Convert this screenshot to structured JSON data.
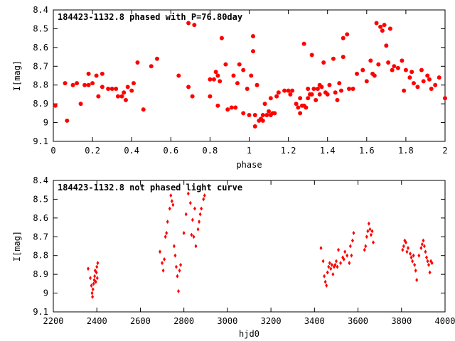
{
  "chart_data": [
    {
      "type": "scatter",
      "title": "184423-1132.8 phased with P=76.80day",
      "xlabel": "phase",
      "ylabel": "I[mag]",
      "xlim": [
        0,
        2
      ],
      "ylim": [
        8.4,
        9.1
      ],
      "y_inverted": true,
      "x_ticks": [
        "0",
        "0.2",
        "0.4",
        "0.6",
        "0.8",
        "1",
        "1.2",
        "1.4",
        "1.6",
        "1.8",
        "2"
      ],
      "x_tick_values": [
        0,
        0.2,
        0.4,
        0.6,
        0.8,
        1.0,
        1.2,
        1.4,
        1.6,
        1.8,
        2.0
      ],
      "y_ticks": [
        "8.4",
        "8.5",
        "8.6",
        "8.7",
        "8.8",
        "8.9",
        "9",
        "9.1"
      ],
      "y_tick_values": [
        8.4,
        8.5,
        8.6,
        8.7,
        8.8,
        8.9,
        9.0,
        9.1
      ],
      "marker": "filled-circle",
      "color": "#ff0000",
      "series": [
        {
          "points": [
            [
              0.01,
              8.91
            ],
            [
              0.06,
              8.79
            ],
            [
              0.07,
              8.99
            ],
            [
              0.1,
              8.8
            ],
            [
              0.12,
              8.79
            ],
            [
              0.14,
              8.9
            ],
            [
              0.16,
              8.8
            ],
            [
              0.18,
              8.8
            ],
            [
              0.18,
              8.74
            ],
            [
              0.2,
              8.79
            ],
            [
              0.22,
              8.75
            ],
            [
              0.23,
              8.86
            ],
            [
              0.25,
              8.74
            ],
            [
              0.25,
              8.81
            ],
            [
              0.28,
              8.82
            ],
            [
              0.3,
              8.82
            ],
            [
              0.32,
              8.82
            ],
            [
              0.33,
              8.86
            ],
            [
              0.35,
              8.86
            ],
            [
              0.36,
              8.84
            ],
            [
              0.37,
              8.88
            ],
            [
              0.38,
              8.81
            ],
            [
              0.4,
              8.83
            ],
            [
              0.41,
              8.79
            ],
            [
              0.43,
              8.68
            ],
            [
              0.46,
              8.93
            ],
            [
              0.5,
              8.7
            ],
            [
              0.53,
              8.66
            ],
            [
              0.64,
              8.75
            ],
            [
              0.69,
              8.81
            ],
            [
              0.69,
              8.47
            ],
            [
              0.71,
              8.86
            ],
            [
              0.72,
              8.48
            ],
            [
              0.8,
              8.77
            ],
            [
              0.8,
              8.86
            ],
            [
              0.82,
              8.77
            ],
            [
              0.83,
              8.73
            ],
            [
              0.84,
              8.75
            ],
            [
              0.84,
              8.91
            ],
            [
              0.85,
              8.78
            ],
            [
              0.86,
              8.55
            ],
            [
              0.88,
              8.69
            ],
            [
              0.89,
              8.93
            ],
            [
              0.91,
              8.92
            ],
            [
              0.92,
              8.75
            ],
            [
              0.93,
              8.92
            ],
            [
              0.94,
              8.79
            ],
            [
              0.95,
              8.69
            ],
            [
              0.97,
              8.72
            ],
            [
              0.97,
              8.95
            ],
            [
              0.99,
              8.82
            ],
            [
              1.0,
              8.96
            ],
            [
              1.01,
              8.75
            ],
            [
              1.02,
              8.54
            ],
            [
              1.02,
              8.62
            ],
            [
              1.03,
              8.96
            ],
            [
              1.03,
              9.02
            ],
            [
              1.04,
              8.8
            ],
            [
              1.05,
              8.99
            ],
            [
              1.06,
              8.98
            ],
            [
              1.07,
              8.99
            ],
            [
              1.07,
              8.96
            ],
            [
              1.08,
              8.9
            ],
            [
              1.09,
              8.96
            ],
            [
              1.1,
              8.94
            ],
            [
              1.11,
              8.87
            ],
            [
              1.11,
              8.96
            ],
            [
              1.12,
              8.95
            ],
            [
              1.13,
              8.95
            ],
            [
              1.14,
              8.86
            ],
            [
              1.15,
              8.84
            ],
            [
              1.18,
              8.83
            ],
            [
              1.2,
              8.83
            ],
            [
              1.21,
              8.85
            ],
            [
              1.22,
              8.83
            ],
            [
              1.24,
              8.9
            ],
            [
              1.25,
              8.92
            ],
            [
              1.26,
              8.95
            ],
            [
              1.26,
              8.87
            ],
            [
              1.27,
              8.91
            ],
            [
              1.28,
              8.58
            ],
            [
              1.28,
              8.91
            ],
            [
              1.29,
              8.92
            ],
            [
              1.3,
              8.87
            ],
            [
              1.3,
              8.82
            ],
            [
              1.31,
              8.85
            ],
            [
              1.32,
              8.85
            ],
            [
              1.32,
              8.64
            ],
            [
              1.33,
              8.82
            ],
            [
              1.34,
              8.88
            ],
            [
              1.35,
              8.82
            ],
            [
              1.36,
              8.8
            ],
            [
              1.36,
              8.85
            ],
            [
              1.37,
              8.81
            ],
            [
              1.38,
              8.68
            ],
            [
              1.39,
              8.84
            ],
            [
              1.4,
              8.85
            ],
            [
              1.41,
              8.8
            ],
            [
              1.43,
              8.66
            ],
            [
              1.44,
              8.84
            ],
            [
              1.45,
              8.88
            ],
            [
              1.46,
              8.79
            ],
            [
              1.47,
              8.83
            ],
            [
              1.48,
              8.65
            ],
            [
              1.48,
              8.55
            ],
            [
              1.5,
              8.53
            ],
            [
              1.51,
              8.82
            ],
            [
              1.53,
              8.82
            ],
            [
              1.55,
              8.74
            ],
            [
              1.58,
              8.72
            ],
            [
              1.6,
              8.78
            ],
            [
              1.62,
              8.67
            ],
            [
              1.63,
              8.74
            ],
            [
              1.64,
              8.75
            ],
            [
              1.65,
              8.47
            ],
            [
              1.66,
              8.69
            ],
            [
              1.67,
              8.49
            ],
            [
              1.68,
              8.51
            ],
            [
              1.69,
              8.48
            ],
            [
              1.7,
              8.59
            ],
            [
              1.71,
              8.68
            ],
            [
              1.72,
              8.5
            ],
            [
              1.73,
              8.72
            ],
            [
              1.74,
              8.7
            ],
            [
              1.76,
              8.71
            ],
            [
              1.78,
              8.67
            ],
            [
              1.79,
              8.83
            ],
            [
              1.8,
              8.72
            ],
            [
              1.82,
              8.76
            ],
            [
              1.83,
              8.73
            ],
            [
              1.84,
              8.79
            ],
            [
              1.86,
              8.81
            ],
            [
              1.88,
              8.72
            ],
            [
              1.89,
              8.78
            ],
            [
              1.91,
              8.75
            ],
            [
              1.92,
              8.77
            ],
            [
              1.93,
              8.82
            ],
            [
              1.95,
              8.8
            ],
            [
              1.97,
              8.76
            ],
            [
              2.0,
              8.87
            ]
          ]
        }
      ]
    },
    {
      "type": "scatter",
      "title": "184423-1132.8 not phased light curve",
      "xlabel": "hjd0",
      "ylabel": "I[mag]",
      "xlim": [
        2200,
        4000
      ],
      "ylim": [
        8.4,
        9.1
      ],
      "y_inverted": true,
      "x_ticks": [
        "2200",
        "2400",
        "2600",
        "2800",
        "3000",
        "3200",
        "3400",
        "3600",
        "3800",
        "4000"
      ],
      "x_tick_values": [
        2200,
        2400,
        2600,
        2800,
        3000,
        3200,
        3400,
        3600,
        3800,
        4000
      ],
      "y_ticks": [
        "8.4",
        "8.5",
        "8.6",
        "8.7",
        "8.8",
        "8.9",
        "9",
        "9.1"
      ],
      "y_tick_values": [
        8.4,
        8.5,
        8.6,
        8.7,
        8.8,
        8.9,
        9.0,
        9.1
      ],
      "marker": "diamond",
      "color": "#ff0000",
      "series": [
        {
          "points": [
            [
              2360,
              8.87
            ],
            [
              2370,
              8.92
            ],
            [
              2375,
              8.96
            ],
            [
              2378,
              9.0
            ],
            [
              2380,
              9.02
            ],
            [
              2382,
              8.98
            ],
            [
              2385,
              8.95
            ],
            [
              2388,
              8.93
            ],
            [
              2390,
              8.91
            ],
            [
              2392,
              8.88
            ],
            [
              2395,
              8.94
            ],
            [
              2398,
              8.89
            ],
            [
              2400,
              8.86
            ],
            [
              2402,
              8.92
            ],
            [
              2404,
              8.84
            ],
            [
              2690,
              8.78
            ],
            [
              2700,
              8.84
            ],
            [
              2705,
              8.88
            ],
            [
              2710,
              8.82
            ],
            [
              2715,
              8.7
            ],
            [
              2720,
              8.68
            ],
            [
              2725,
              8.62
            ],
            [
              2735,
              8.55
            ],
            [
              2740,
              8.48
            ],
            [
              2745,
              8.51
            ],
            [
              2750,
              8.53
            ],
            [
              2755,
              8.75
            ],
            [
              2760,
              8.8
            ],
            [
              2765,
              8.86
            ],
            [
              2770,
              8.91
            ],
            [
              2775,
              8.99
            ],
            [
              2780,
              8.88
            ],
            [
              2785,
              8.85
            ],
            [
              2800,
              8.68
            ],
            [
              2810,
              8.58
            ],
            [
              2820,
              8.47
            ],
            [
              2830,
              8.52
            ],
            [
              2835,
              8.69
            ],
            [
              2840,
              8.61
            ],
            [
              2845,
              8.7
            ],
            [
              2850,
              8.55
            ],
            [
              2855,
              8.75
            ],
            [
              2865,
              8.66
            ],
            [
              2870,
              8.62
            ],
            [
              2875,
              8.58
            ],
            [
              2880,
              8.55
            ],
            [
              2890,
              8.5
            ],
            [
              2895,
              8.48
            ],
            [
              3430,
              8.76
            ],
            [
              3440,
              8.83
            ],
            [
              3445,
              8.91
            ],
            [
              3450,
              8.94
            ],
            [
              3455,
              8.96
            ],
            [
              3460,
              8.89
            ],
            [
              3465,
              8.86
            ],
            [
              3470,
              8.84
            ],
            [
              3475,
              8.87
            ],
            [
              3480,
              8.85
            ],
            [
              3485,
              8.9
            ],
            [
              3490,
              8.86
            ],
            [
              3495,
              8.85
            ],
            [
              3500,
              8.83
            ],
            [
              3505,
              8.86
            ],
            [
              3510,
              8.77
            ],
            [
              3520,
              8.84
            ],
            [
              3530,
              8.81
            ],
            [
              3535,
              8.82
            ],
            [
              3540,
              8.78
            ],
            [
              3550,
              8.8
            ],
            [
              3560,
              8.84
            ],
            [
              3565,
              8.75
            ],
            [
              3570,
              8.8
            ],
            [
              3575,
              8.72
            ],
            [
              3580,
              8.68
            ],
            [
              3630,
              8.77
            ],
            [
              3635,
              8.75
            ],
            [
              3640,
              8.7
            ],
            [
              3645,
              8.67
            ],
            [
              3650,
              8.63
            ],
            [
              3655,
              8.66
            ],
            [
              3660,
              8.69
            ],
            [
              3665,
              8.67
            ],
            [
              3670,
              8.73
            ],
            [
              3805,
              8.77
            ],
            [
              3810,
              8.75
            ],
            [
              3815,
              8.72
            ],
            [
              3820,
              8.73
            ],
            [
              3825,
              8.78
            ],
            [
              3830,
              8.76
            ],
            [
              3840,
              8.79
            ],
            [
              3845,
              8.81
            ],
            [
              3850,
              8.83
            ],
            [
              3855,
              8.8
            ],
            [
              3860,
              8.85
            ],
            [
              3865,
              8.88
            ],
            [
              3870,
              8.93
            ],
            [
              3880,
              8.8
            ],
            [
              3890,
              8.76
            ],
            [
              3895,
              8.74
            ],
            [
              3900,
              8.72
            ],
            [
              3905,
              8.75
            ],
            [
              3910,
              8.78
            ],
            [
              3915,
              8.81
            ],
            [
              3920,
              8.83
            ],
            [
              3925,
              8.85
            ],
            [
              3930,
              8.89
            ],
            [
              3935,
              8.83
            ],
            [
              3940,
              8.84
            ]
          ]
        }
      ]
    }
  ]
}
